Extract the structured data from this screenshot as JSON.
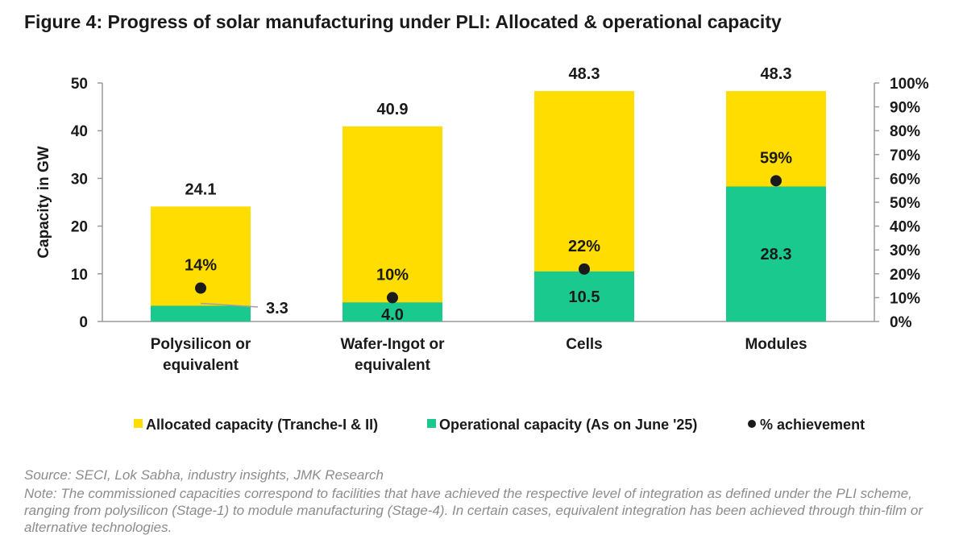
{
  "title": "Figure 4: Progress of solar manufacturing under PLI: Allocated & operational capacity",
  "source": "Source: SECI, Lok Sabha, industry insights, JMK Research",
  "note": "Note: The commissioned capacities correspond to facilities that have achieved the respective level of integration as defined under the PLI scheme, ranging from polysilicon (Stage-1) to module manufacturing (Stage-4). In certain cases, equivalent integration has been achieved through thin-film or alternative technologies.",
  "colors": {
    "allocated": "#FFDD00",
    "operational": "#19C98D",
    "achievement": "#1a1a1a",
    "axis": "#9a9a9a",
    "text": "#1a1a1a"
  },
  "chart_data": {
    "type": "bar",
    "stacked": true,
    "categories": [
      [
        "Polysilicon or",
        "equivalent"
      ],
      [
        "Wafer-Ingot or",
        "equivalent"
      ],
      [
        "Cells"
      ],
      [
        "Modules"
      ]
    ],
    "series": [
      {
        "name": "Allocated capacity (Tranche-I & II)",
        "values": [
          24.1,
          40.9,
          48.3,
          48.3
        ],
        "labels": [
          "24.1",
          "40.9",
          "48.3",
          "48.3"
        ]
      },
      {
        "name": "Operational capacity (As on June '25)",
        "values": [
          3.3,
          4.0,
          10.5,
          28.3
        ],
        "labels": [
          "3.3",
          "4.0",
          "10.5",
          "28.3"
        ]
      },
      {
        "name": "% achievement",
        "axis": "secondary",
        "values": [
          14,
          10,
          22,
          59
        ],
        "labels": [
          "14%",
          "10%",
          "22%",
          "59%"
        ]
      }
    ],
    "ylabel": "Capacity in GW",
    "ylim": [
      0,
      50
    ],
    "yticks": [
      "0",
      "10",
      "20",
      "30",
      "40",
      "50"
    ],
    "y2lim": [
      0,
      100
    ],
    "y2ticks": [
      "0%",
      "10%",
      "20%",
      "30%",
      "40%",
      "50%",
      "60%",
      "70%",
      "80%",
      "90%",
      "100%"
    ],
    "grid": false,
    "legend": "bottom"
  }
}
